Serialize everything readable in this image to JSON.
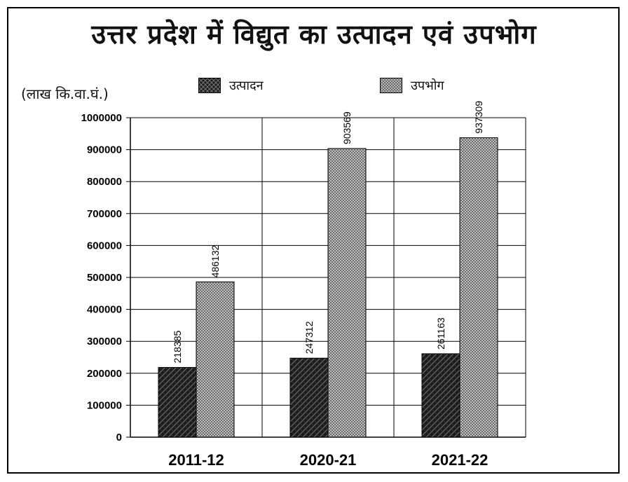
{
  "chart_data": {
    "type": "bar",
    "title": "उत्तर प्रदेश में विद्युत का उत्पादन एवं उपभोग",
    "unit_label": "(लाख कि.वा.घं.)",
    "categories": [
      "2011-12",
      "2020-21",
      "2021-22"
    ],
    "series": [
      {
        "name": "उत्पादन",
        "values": [
          218385,
          247312,
          261163
        ],
        "pattern": "dark-crosshatch"
      },
      {
        "name": "उपभोग",
        "values": [
          486132,
          903569,
          937309
        ],
        "pattern": "light-crosshatch"
      }
    ],
    "ylim": [
      0,
      1000000
    ],
    "yticks": [
      "0",
      "100000",
      "200000",
      "300000",
      "400000",
      "500000",
      "600000",
      "700000",
      "800000",
      "900000",
      "1000000"
    ],
    "grid": true,
    "legend_position": "top-center",
    "data_labels": [
      "218385",
      "486132",
      "247312",
      "903569",
      "261163",
      "937309"
    ]
  },
  "colors": {
    "production_fill": "#1a1a1a",
    "consumption_fill": "#b5b5b5",
    "grid": "#000000"
  }
}
